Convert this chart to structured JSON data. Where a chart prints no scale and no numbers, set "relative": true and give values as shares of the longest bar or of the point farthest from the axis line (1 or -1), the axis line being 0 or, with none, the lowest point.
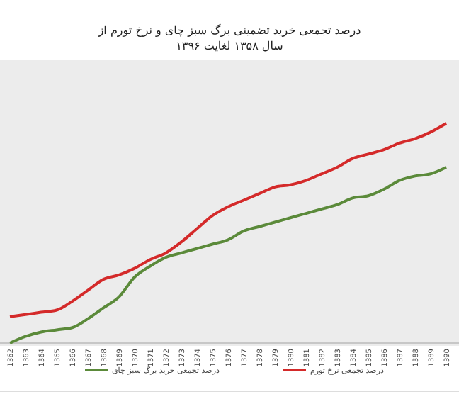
{
  "chart_data": {
    "type": "line",
    "title": "درصد تجمعی خرید تضمینی برگ سبز چای و نرخ تورم از\nسال ۱۳۵۸ لغایت ۱۳۹۶",
    "relative": true,
    "categories": [
      "1362",
      "1363",
      "1364",
      "1365",
      "1366",
      "1367",
      "1368",
      "1369",
      "1370",
      "1371",
      "1372",
      "1373",
      "1374",
      "1375",
      "1376",
      "1377",
      "1378",
      "1379",
      "1380",
      "1381",
      "1382",
      "1383",
      "1384",
      "1385",
      "1386",
      "1387",
      "1388",
      "1389",
      "1390"
    ],
    "series": [
      {
        "name": "درصد تجمعی خرید برگ سبز چای",
        "color": "#5b8a3a",
        "values": [
          0,
          0.03,
          0.05,
          0.06,
          0.07,
          0.11,
          0.16,
          0.21,
          0.3,
          0.35,
          0.39,
          0.41,
          0.43,
          0.45,
          0.47,
          0.51,
          0.53,
          0.55,
          0.57,
          0.59,
          0.61,
          0.63,
          0.66,
          0.67,
          0.7,
          0.74,
          0.76,
          0.77,
          0.8
        ]
      },
      {
        "name": "درصد تجمعی نرخ تورم",
        "color": "#d42a2a",
        "values": [
          0.12,
          0.13,
          0.14,
          0.15,
          0.19,
          0.24,
          0.29,
          0.31,
          0.34,
          0.38,
          0.41,
          0.46,
          0.52,
          0.58,
          0.62,
          0.65,
          0.68,
          0.71,
          0.72,
          0.74,
          0.77,
          0.8,
          0.84,
          0.86,
          0.88,
          0.91,
          0.93,
          0.96,
          1
        ]
      }
    ],
    "legend": "bottom",
    "grid": false
  }
}
